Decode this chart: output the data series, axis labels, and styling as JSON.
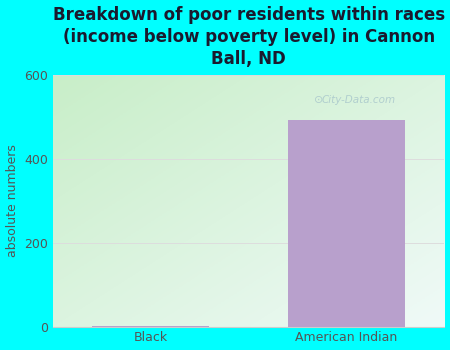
{
  "title": "Breakdown of poor residents within races\n(income below poverty level) in Cannon\nBall, ND",
  "categories": [
    "Black",
    "American Indian"
  ],
  "values": [
    2,
    492
  ],
  "bar_color": "#b8a0cc",
  "ylabel": "absolute numbers",
  "ylim": [
    0,
    600
  ],
  "yticks": [
    0,
    200,
    400,
    600
  ],
  "background_outer": "#00ffff",
  "grad_color_bottom_left": "#c8eec8",
  "grad_color_top_right": "#f0faf8",
  "grid_color": "#dddddd",
  "title_fontsize": 12,
  "tick_fontsize": 9,
  "ylabel_fontsize": 9,
  "title_color": "#1a1a2e",
  "tick_color": "#555555",
  "bar_width": 0.6,
  "watermark": "City-Data.com"
}
